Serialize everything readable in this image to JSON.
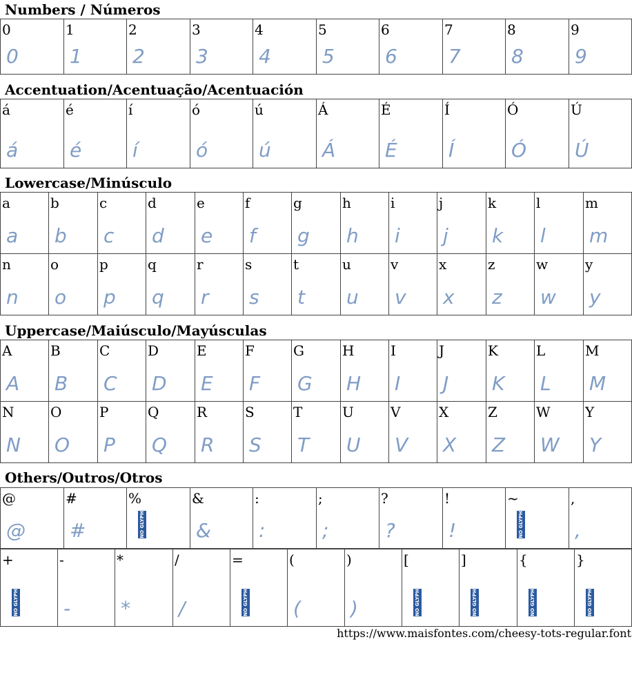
{
  "sections": [
    {
      "title": "Numbers / Números",
      "rows": [
        [
          "0",
          "1",
          "2",
          "3",
          "4",
          "5",
          "6",
          "7",
          "8",
          "9"
        ]
      ]
    },
    {
      "title": "Accentuation/Acentuação/Acentuación",
      "rows": [
        [
          "á",
          "é",
          "í",
          "ó",
          "ú",
          "Á",
          "É",
          "Í",
          "Ó",
          "Ú"
        ]
      ]
    },
    {
      "title": "Lowercase/Minúsculo",
      "rows": [
        [
          "a",
          "b",
          "c",
          "d",
          "e",
          "f",
          "g",
          "h",
          "i",
          "j",
          "k",
          "l",
          "m"
        ],
        [
          "n",
          "o",
          "p",
          "q",
          "r",
          "s",
          "t",
          "u",
          "v",
          "x",
          "z",
          "w",
          "y"
        ]
      ]
    },
    {
      "title": "Uppercase/Maiúsculo/Mayúsculas",
      "rows": [
        [
          "A",
          "B",
          "C",
          "D",
          "E",
          "F",
          "G",
          "H",
          "I",
          "J",
          "K",
          "L",
          "M"
        ],
        [
          "N",
          "O",
          "P",
          "Q",
          "R",
          "S",
          "T",
          "U",
          "V",
          "X",
          "Z",
          "W",
          "Y"
        ]
      ]
    },
    {
      "title": "Others/Outros/Otros",
      "rows": [
        [
          "@",
          "#",
          {
            "char": "%",
            "badge": "NO GLYPH"
          },
          "&",
          ":",
          ";",
          "?",
          "!",
          {
            "char": "~",
            "badge": "NO GLYPH"
          },
          ","
        ],
        [
          {
            "char": "+",
            "badge": "NO GLYPH"
          },
          "-",
          "*",
          "/",
          {
            "char": "=",
            "badge": "NO GLYPH"
          },
          "(",
          ")",
          {
            "char": "[",
            "badge": "NO GLYPH"
          },
          {
            "char": "]",
            "badge": "NO GLYPH"
          },
          {
            "char": "{",
            "badge": "NO GLYPH"
          },
          {
            "char": "}",
            "badge": "NO GLYPH"
          }
        ]
      ]
    }
  ],
  "footer": {
    "url": "https://www.maisfontes.com/cheesy-tots-regular.font"
  }
}
